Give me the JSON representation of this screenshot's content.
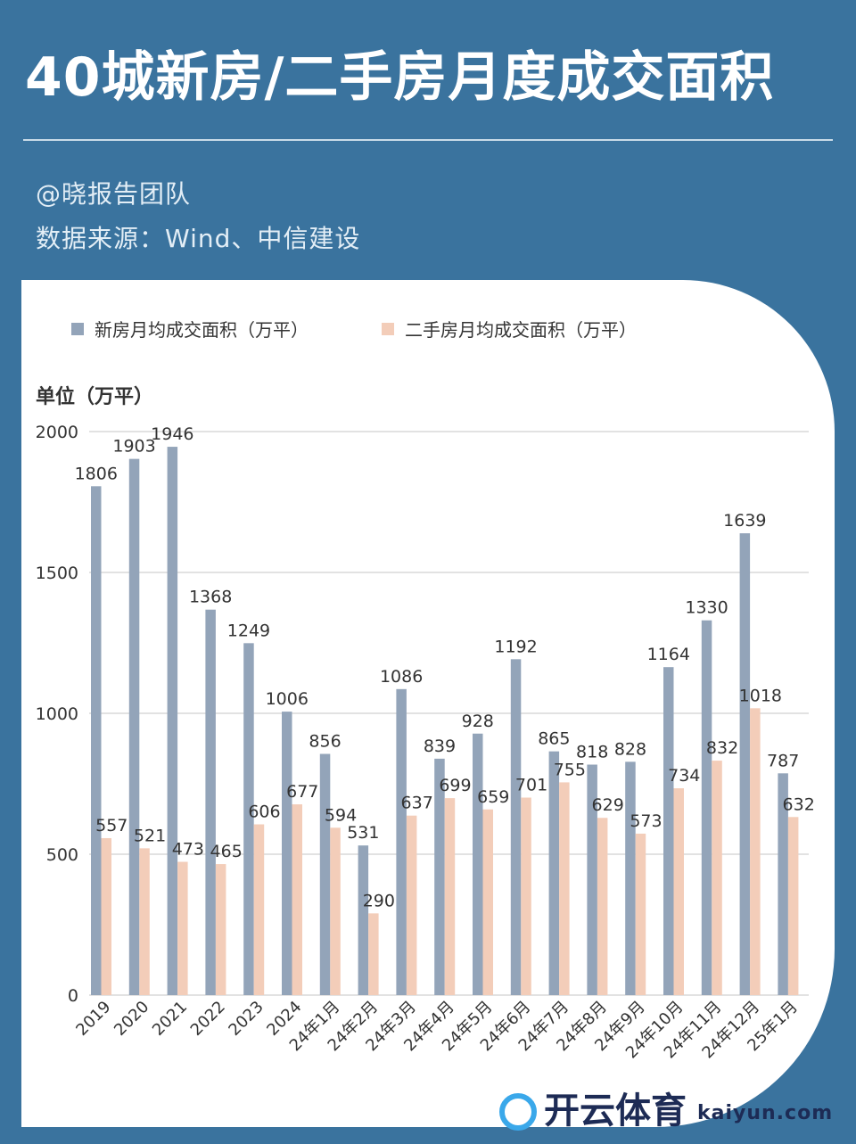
{
  "header": {
    "title": "40城新房/二手房月度成交面积",
    "author": "@晓报告团队",
    "source": "数据来源：Wind、中信建设"
  },
  "watermark": {
    "cn": "开云体育",
    "en": "kaiyun.com"
  },
  "colors": {
    "bg": "#3a739e",
    "new": "#93a4b9",
    "second": "#f3cdb9"
  },
  "chart_data": {
    "type": "bar",
    "ylabel": "单位（万平）",
    "ylim": [
      0,
      2000
    ],
    "yticks": [
      0,
      500,
      1000,
      1500,
      2000
    ],
    "grid": true,
    "legend_placement": "top",
    "categories": [
      "2019",
      "2020",
      "2021",
      "2022",
      "2023",
      "2024",
      "24年1月",
      "24年2月",
      "24年3月",
      "24年4月",
      "24年5月",
      "24年6月",
      "24年7月",
      "24年8月",
      "24年9月",
      "24年10月",
      "24年11月",
      "24年12月",
      "25年1月"
    ],
    "series": [
      {
        "name": "新房月均成交面积（万平）",
        "values": [
          1806,
          1903,
          1946,
          1368,
          1249,
          1006,
          856,
          531,
          1086,
          839,
          928,
          1192,
          865,
          818,
          828,
          1164,
          1330,
          1639,
          787
        ]
      },
      {
        "name": "二手房月均成交面积（万平）",
        "values": [
          557,
          521,
          473,
          465,
          606,
          677,
          594,
          290,
          637,
          699,
          659,
          701,
          755,
          629,
          573,
          734,
          832,
          1018,
          632
        ]
      }
    ]
  }
}
